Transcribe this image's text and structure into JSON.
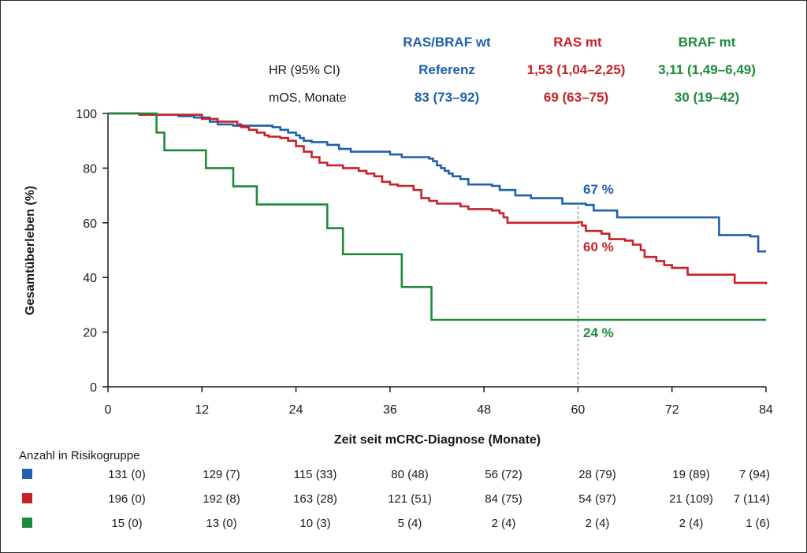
{
  "colors": {
    "ras_braf_wt": "#1f5fad",
    "ras_mt": "#c62128",
    "braf_mt": "#1f8a3c",
    "axis": "#1a1a1a"
  },
  "legend_table": {
    "columns": [
      "RAS/BRAF wt",
      "RAS mt",
      "BRAF mt"
    ],
    "rows": [
      {
        "label": "HR (95% CI)",
        "values": [
          "Referenz",
          "1,53 (1,04–2,25)",
          "3,11 (1,49–6,49)"
        ]
      },
      {
        "label": "mOS, Monate",
        "values": [
          "83 (73–92)",
          "69 (63–75)",
          "30 (19–42)"
        ]
      }
    ]
  },
  "chart_data": {
    "type": "line",
    "subtype": "kaplan-meier-step",
    "xlabel": "Zeit seit mCRC-Diagnose (Monate)",
    "ylabel": "Gesamtüberleben (%)",
    "xlim": [
      0,
      84
    ],
    "ylim": [
      0,
      100
    ],
    "xticks": [
      0,
      12,
      24,
      36,
      48,
      60,
      72,
      84
    ],
    "yticks": [
      0,
      20,
      40,
      60,
      80,
      100
    ],
    "reference_line_x": 60,
    "grid": false,
    "series": [
      {
        "name": "RAS/BRAF wt",
        "color": "#1f5fad",
        "end_label": "67 %",
        "points": [
          [
            0,
            100
          ],
          [
            4,
            99.5
          ],
          [
            9,
            99
          ],
          [
            11,
            98.5
          ],
          [
            13,
            97
          ],
          [
            14,
            96
          ],
          [
            16,
            95.5
          ],
          [
            21,
            95
          ],
          [
            22,
            94
          ],
          [
            23,
            93
          ],
          [
            24,
            92
          ],
          [
            24.5,
            91
          ],
          [
            25,
            90
          ],
          [
            26,
            89.5
          ],
          [
            28,
            88.5
          ],
          [
            29.5,
            87
          ],
          [
            31,
            86
          ],
          [
            36,
            85
          ],
          [
            37.5,
            84
          ],
          [
            41,
            83.5
          ],
          [
            41.5,
            82.5
          ],
          [
            42,
            81
          ],
          [
            42.5,
            80
          ],
          [
            43,
            79
          ],
          [
            43.5,
            78
          ],
          [
            44,
            77
          ],
          [
            45,
            76
          ],
          [
            46,
            74
          ],
          [
            49,
            73.5
          ],
          [
            50,
            72
          ],
          [
            52,
            70
          ],
          [
            54,
            69
          ],
          [
            58,
            67
          ],
          [
            61,
            66.5
          ],
          [
            62,
            64.5
          ],
          [
            65,
            62
          ],
          [
            78,
            55.5
          ],
          [
            82,
            55
          ],
          [
            83,
            49.5
          ],
          [
            84,
            49.5
          ]
        ]
      },
      {
        "name": "RAS mt",
        "color": "#c62128",
        "end_label": "60 %",
        "points": [
          [
            0,
            100
          ],
          [
            4,
            99.5
          ],
          [
            8.5,
            99.5
          ],
          [
            12,
            98
          ],
          [
            14,
            97
          ],
          [
            16.5,
            96
          ],
          [
            17,
            95
          ],
          [
            18,
            94
          ],
          [
            19,
            93
          ],
          [
            20,
            92
          ],
          [
            20.5,
            91.5
          ],
          [
            22,
            91
          ],
          [
            23,
            90
          ],
          [
            24,
            88
          ],
          [
            25,
            86
          ],
          [
            26,
            84
          ],
          [
            27,
            82
          ],
          [
            28,
            81
          ],
          [
            30,
            80
          ],
          [
            32,
            79
          ],
          [
            33,
            78
          ],
          [
            34,
            77
          ],
          [
            35,
            75
          ],
          [
            36,
            74
          ],
          [
            37,
            73.5
          ],
          [
            39,
            72
          ],
          [
            40,
            69
          ],
          [
            41,
            68
          ],
          [
            42,
            67
          ],
          [
            45,
            66
          ],
          [
            46,
            65
          ],
          [
            49,
            64.5
          ],
          [
            50,
            63.5
          ],
          [
            50.5,
            62
          ],
          [
            51,
            60
          ],
          [
            60,
            60.2
          ],
          [
            60.5,
            59
          ],
          [
            61,
            57
          ],
          [
            63,
            56
          ],
          [
            64,
            54
          ],
          [
            66,
            53.5
          ],
          [
            67,
            52
          ],
          [
            68,
            50
          ],
          [
            68.5,
            47.5
          ],
          [
            70,
            46
          ],
          [
            71,
            44.5
          ],
          [
            72,
            43.5
          ],
          [
            74,
            41
          ],
          [
            80,
            38
          ],
          [
            84,
            37.5
          ]
        ]
      },
      {
        "name": "BRAF mt",
        "color": "#1f8a3c",
        "end_label": "24 %",
        "points": [
          [
            0,
            100
          ],
          [
            6,
            100
          ],
          [
            6.2,
            93
          ],
          [
            7.2,
            86.5
          ],
          [
            12.5,
            80
          ],
          [
            16,
            73.3
          ],
          [
            19,
            66.7
          ],
          [
            28,
            58
          ],
          [
            30,
            48.5
          ],
          [
            37.5,
            36.5
          ],
          [
            41.3,
            24.5
          ],
          [
            84,
            24.5
          ]
        ]
      }
    ],
    "risk_table": {
      "title": "Anzahl in Risikogruppe",
      "times": [
        0,
        12,
        24,
        36,
        48,
        60,
        72,
        84
      ],
      "rows": [
        {
          "series": "RAS/BRAF wt",
          "color": "#1f5fad",
          "values": [
            "131 (0)",
            "129 (7)",
            "115 (33)",
            "80 (48)",
            "56 (72)",
            "28 (79)",
            "19 (89)",
            "7 (94)"
          ]
        },
        {
          "series": "RAS mt",
          "color": "#c62128",
          "values": [
            "196 (0)",
            "192 (8)",
            "163 (28)",
            "121 (51)",
            "84 (75)",
            "54 (97)",
            "21 (109)",
            "7 (114)"
          ]
        },
        {
          "series": "BRAF mt",
          "color": "#1f8a3c",
          "values": [
            "15 (0)",
            "13 (0)",
            "10 (3)",
            "5 (4)",
            "2 (4)",
            "2 (4)",
            "2 (4)",
            "1 (6)"
          ]
        }
      ]
    }
  }
}
